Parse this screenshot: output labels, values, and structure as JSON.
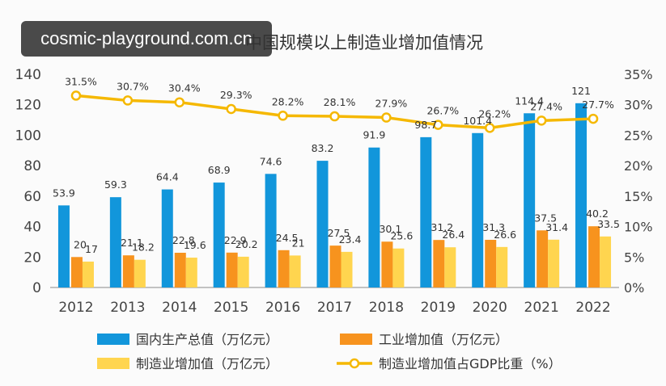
{
  "watermark": "cosmic-playground.com.cn",
  "chart_data": {
    "type": "bar",
    "title": "中国规模以上制造业增加值情况",
    "categories": [
      "2012",
      "2013",
      "2014",
      "2015",
      "2016",
      "2017",
      "2018",
      "2019",
      "2020",
      "2021",
      "2022"
    ],
    "ylim": [
      0,
      140
    ],
    "yticks": [
      "0",
      "20",
      "40",
      "60",
      "80",
      "100",
      "120",
      "140"
    ],
    "y2lim": [
      0,
      35
    ],
    "y2ticks": [
      "0%",
      "5%",
      "10%",
      "15%",
      "20%",
      "25%",
      "30%",
      "35%"
    ],
    "series": [
      {
        "name": "国内生产总值（万亿元）",
        "type": "bar",
        "color": "#1296db",
        "values": [
          53.9,
          59.3,
          64.4,
          68.9,
          74.6,
          83.2,
          91.9,
          98.7,
          101.4,
          114.4,
          121
        ],
        "labels": [
          "53.9",
          "59.3",
          "64.4",
          "68.9",
          "74.6",
          "83.2",
          "91.9",
          "98.7",
          "101.4",
          "114.4",
          "121"
        ]
      },
      {
        "name": "工业增加值（万亿元）",
        "type": "bar",
        "color": "#f7931e",
        "values": [
          20,
          21.1,
          22.8,
          22.9,
          24.5,
          27.5,
          30.1,
          31.2,
          31.3,
          37.5,
          40.2
        ],
        "labels": [
          "20",
          "21.1",
          "22.8",
          "22.9",
          "24.5",
          "27.5",
          "30.1",
          "31.2",
          "31.3",
          "37.5",
          "40.2"
        ]
      },
      {
        "name": "制造业增加值（万亿元）",
        "type": "bar",
        "color": "#ffd54f",
        "values": [
          17,
          18.2,
          19.6,
          20.2,
          21,
          23.4,
          25.6,
          26.4,
          26.6,
          31.4,
          33.5
        ],
        "labels": [
          "17",
          "18.2",
          "19.6",
          "20.2",
          "21",
          "23.4",
          "25.6",
          "26.4",
          "26.6",
          "31.4",
          "33.5"
        ]
      },
      {
        "name": "制造业增加值占GDP比重（%）",
        "type": "line",
        "axis": "right",
        "color": "#f5b800",
        "values": [
          31.5,
          30.7,
          30.4,
          29.3,
          28.2,
          28.1,
          27.9,
          26.7,
          26.2,
          27.4,
          27.7
        ],
        "labels": [
          "31.5%",
          "30.7%",
          "30.4%",
          "29.3%",
          "28.2%",
          "28.1%",
          "27.9%",
          "26.7%",
          "26.2%",
          "27.4%",
          "27.7%"
        ]
      }
    ],
    "legend_position": "bottom",
    "grid": false
  }
}
